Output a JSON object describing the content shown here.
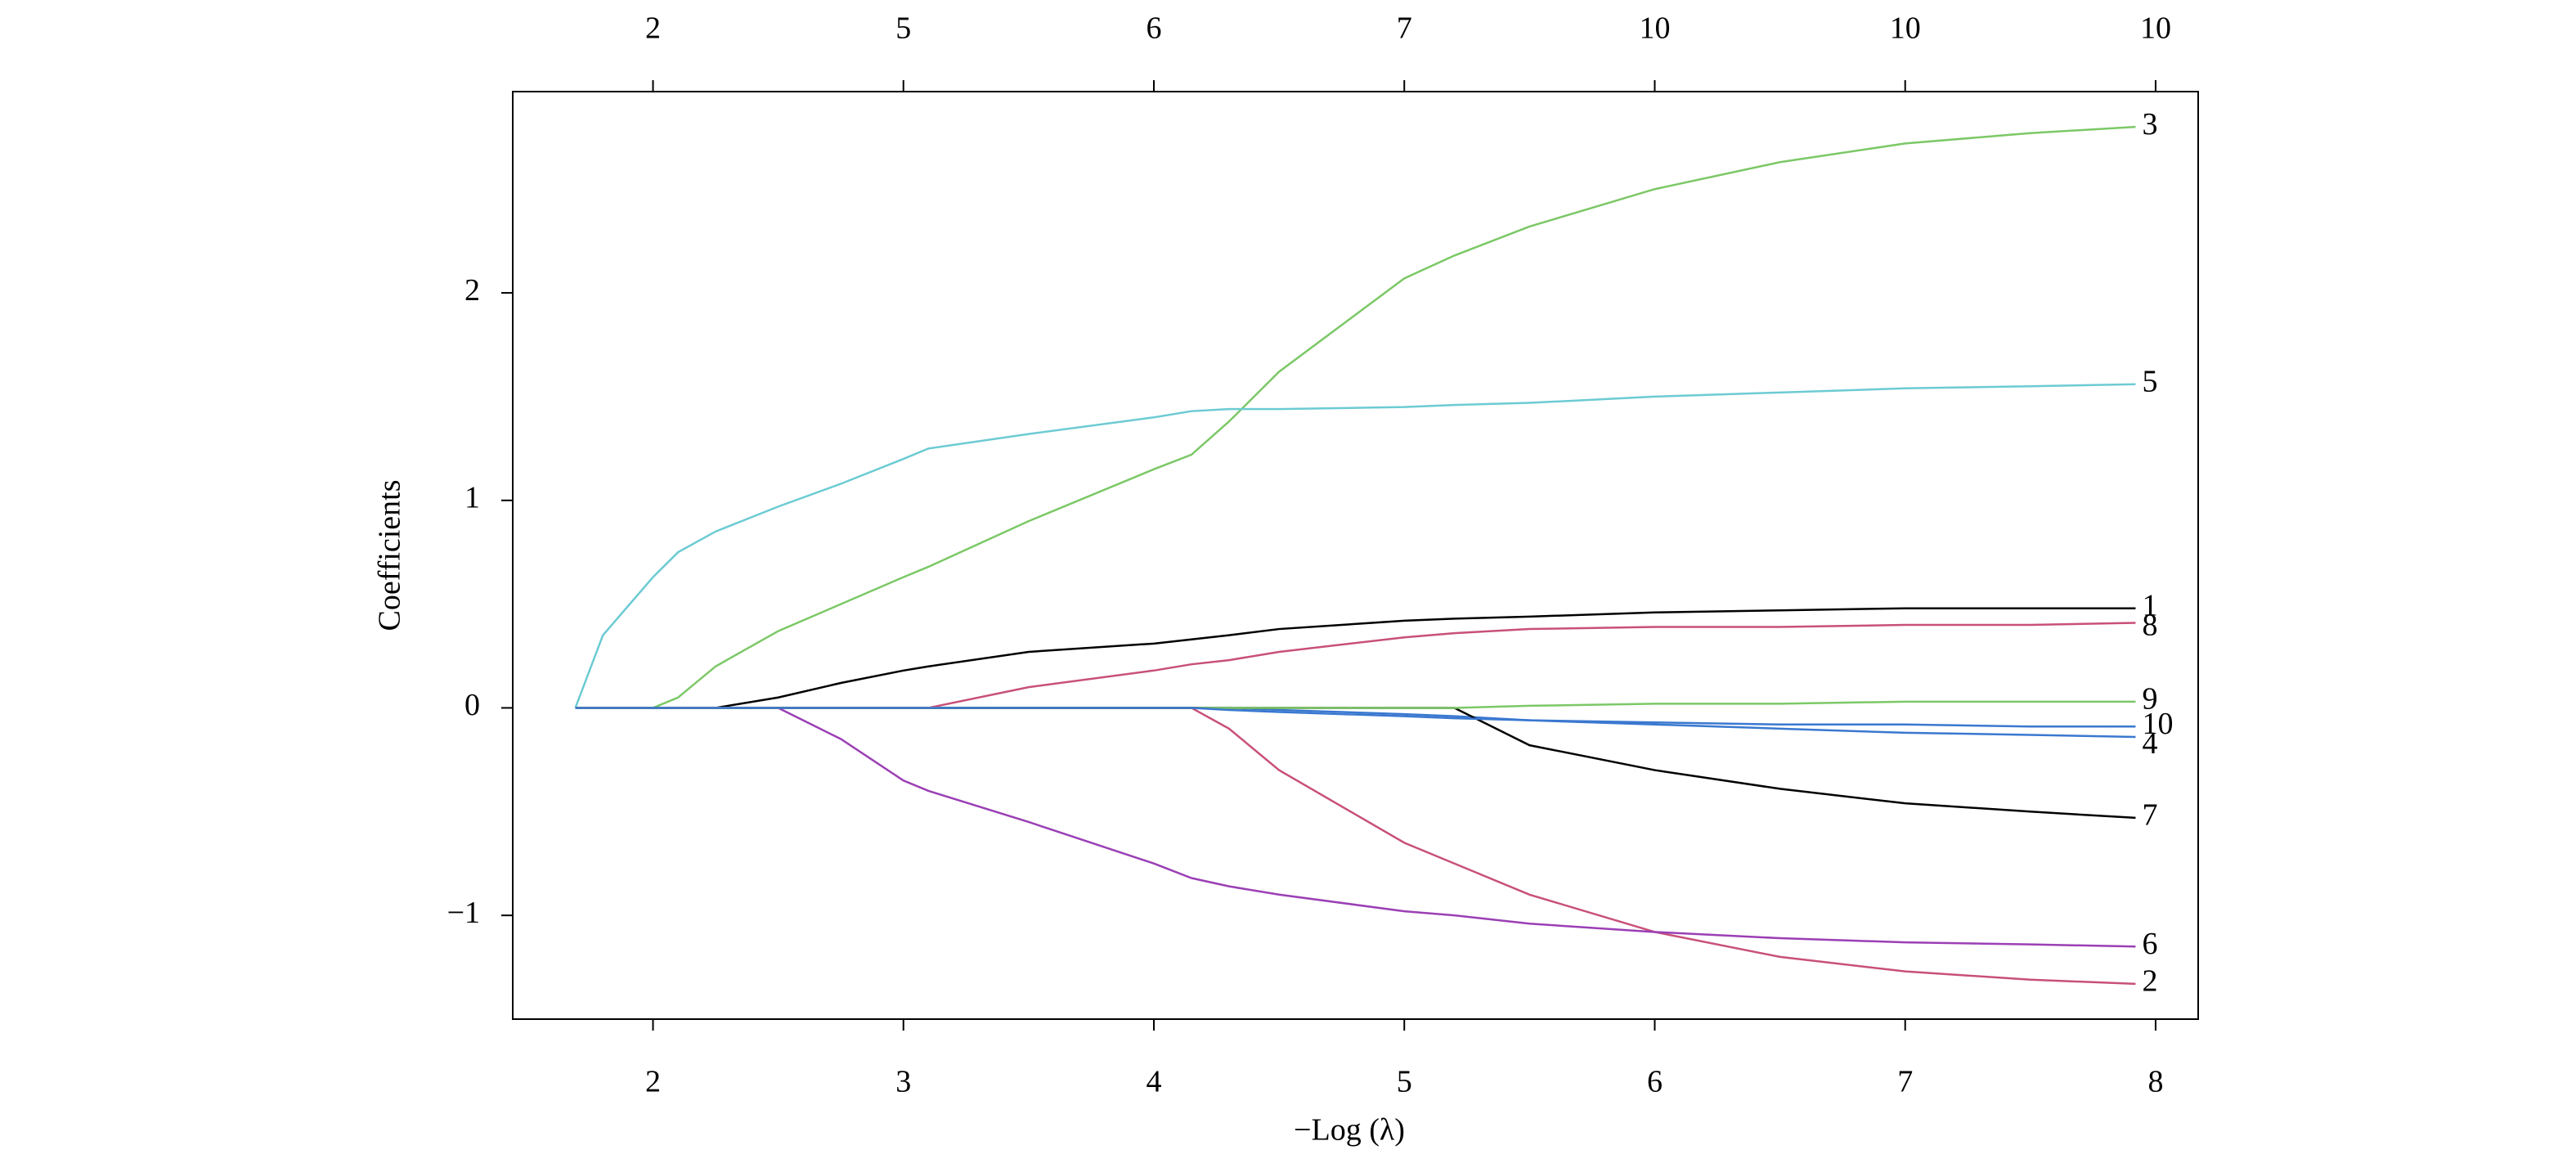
{
  "chart_data": {
    "type": "line",
    "xlabel": "−Log (λ)",
    "ylabel": "Coefficients",
    "x": [
      1.69,
      1.8,
      2.0,
      2.1,
      2.25,
      2.5,
      2.75,
      3.0,
      3.1,
      3.5,
      4.0,
      4.15,
      4.3,
      4.5,
      5.0,
      5.2,
      5.5,
      6.0,
      6.5,
      7.0,
      7.5,
      7.92
    ],
    "series": [
      {
        "name": "1",
        "color": "#000000",
        "values": [
          0,
          0,
          0,
          0,
          0,
          0.05,
          0.12,
          0.18,
          0.2,
          0.27,
          0.31,
          0.33,
          0.35,
          0.38,
          0.42,
          0.43,
          0.44,
          0.46,
          0.47,
          0.48,
          0.48,
          0.48
        ]
      },
      {
        "name": "2",
        "color": "#C8507A",
        "values": [
          0,
          0,
          0,
          0,
          0,
          0,
          0,
          0,
          0,
          0,
          0,
          0,
          -0.1,
          -0.3,
          -0.65,
          -0.75,
          -0.9,
          -1.08,
          -1.2,
          -1.27,
          -1.31,
          -1.33
        ]
      },
      {
        "name": "3",
        "color": "#7CC867",
        "values": [
          0,
          0,
          0,
          0.05,
          0.2,
          0.37,
          0.5,
          0.63,
          0.68,
          0.9,
          1.15,
          1.22,
          1.38,
          1.62,
          2.07,
          2.18,
          2.32,
          2.5,
          2.63,
          2.72,
          2.77,
          2.8
        ]
      },
      {
        "name": "4",
        "color": "#3A78D0",
        "values": [
          0,
          0,
          0,
          0,
          0,
          0,
          0,
          0,
          0,
          0,
          0,
          0,
          0,
          -0.01,
          -0.03,
          -0.04,
          -0.06,
          -0.08,
          -0.1,
          -0.12,
          -0.13,
          -0.14
        ]
      },
      {
        "name": "5",
        "color": "#6CCBD3",
        "values": [
          0,
          0.35,
          0.63,
          0.75,
          0.85,
          0.97,
          1.08,
          1.2,
          1.25,
          1.32,
          1.4,
          1.43,
          1.44,
          1.44,
          1.45,
          1.46,
          1.47,
          1.5,
          1.52,
          1.54,
          1.55,
          1.56
        ]
      },
      {
        "name": "6",
        "color": "#9B3FB5",
        "values": [
          0,
          0,
          0,
          0,
          0,
          0,
          -0.15,
          -0.35,
          -0.4,
          -0.55,
          -0.75,
          -0.82,
          -0.86,
          -0.9,
          -0.98,
          -1.0,
          -1.04,
          -1.08,
          -1.11,
          -1.13,
          -1.14,
          -1.15
        ]
      },
      {
        "name": "7",
        "color": "#000000",
        "values": [
          0,
          0,
          0,
          0,
          0,
          0,
          0,
          0,
          0,
          0,
          0,
          0,
          0,
          0,
          0,
          0,
          -0.18,
          -0.3,
          -0.39,
          -0.46,
          -0.5,
          -0.53
        ]
      },
      {
        "name": "8",
        "color": "#C8507A",
        "values": [
          0,
          0,
          0,
          0,
          0,
          0,
          0,
          0,
          0,
          0.1,
          0.18,
          0.21,
          0.23,
          0.27,
          0.34,
          0.36,
          0.38,
          0.39,
          0.39,
          0.4,
          0.4,
          0.41
        ]
      },
      {
        "name": "9",
        "color": "#7CC867",
        "values": [
          0,
          0,
          0,
          0,
          0,
          0,
          0,
          0,
          0,
          0,
          0,
          0,
          0,
          0,
          0,
          0,
          0.01,
          0.02,
          0.02,
          0.03,
          0.03,
          0.03
        ]
      },
      {
        "name": "10",
        "color": "#3A78D0",
        "values": [
          0,
          0,
          0,
          0,
          0,
          0,
          0,
          0,
          0,
          0,
          0,
          0,
          -0.01,
          -0.02,
          -0.04,
          -0.05,
          -0.06,
          -0.07,
          -0.08,
          -0.08,
          -0.09,
          -0.09
        ]
      }
    ],
    "xlim": [
      1.44,
      8.17
    ],
    "ylim": [
      -1.5,
      2.97
    ],
    "xticks": [
      2,
      3,
      4,
      5,
      6,
      7,
      8
    ],
    "yticks": [
      {
        "value": -1,
        "label": "−1"
      },
      0,
      1,
      2
    ],
    "top_xticks": [
      2,
      {
        "value": 3,
        "label": "5"
      },
      {
        "value": 4,
        "label": "6"
      },
      {
        "value": 5,
        "label": "7"
      },
      {
        "value": 6,
        "label": "10"
      },
      {
        "value": 7,
        "label": "10"
      },
      {
        "value": 8,
        "label": "10"
      }
    ]
  }
}
